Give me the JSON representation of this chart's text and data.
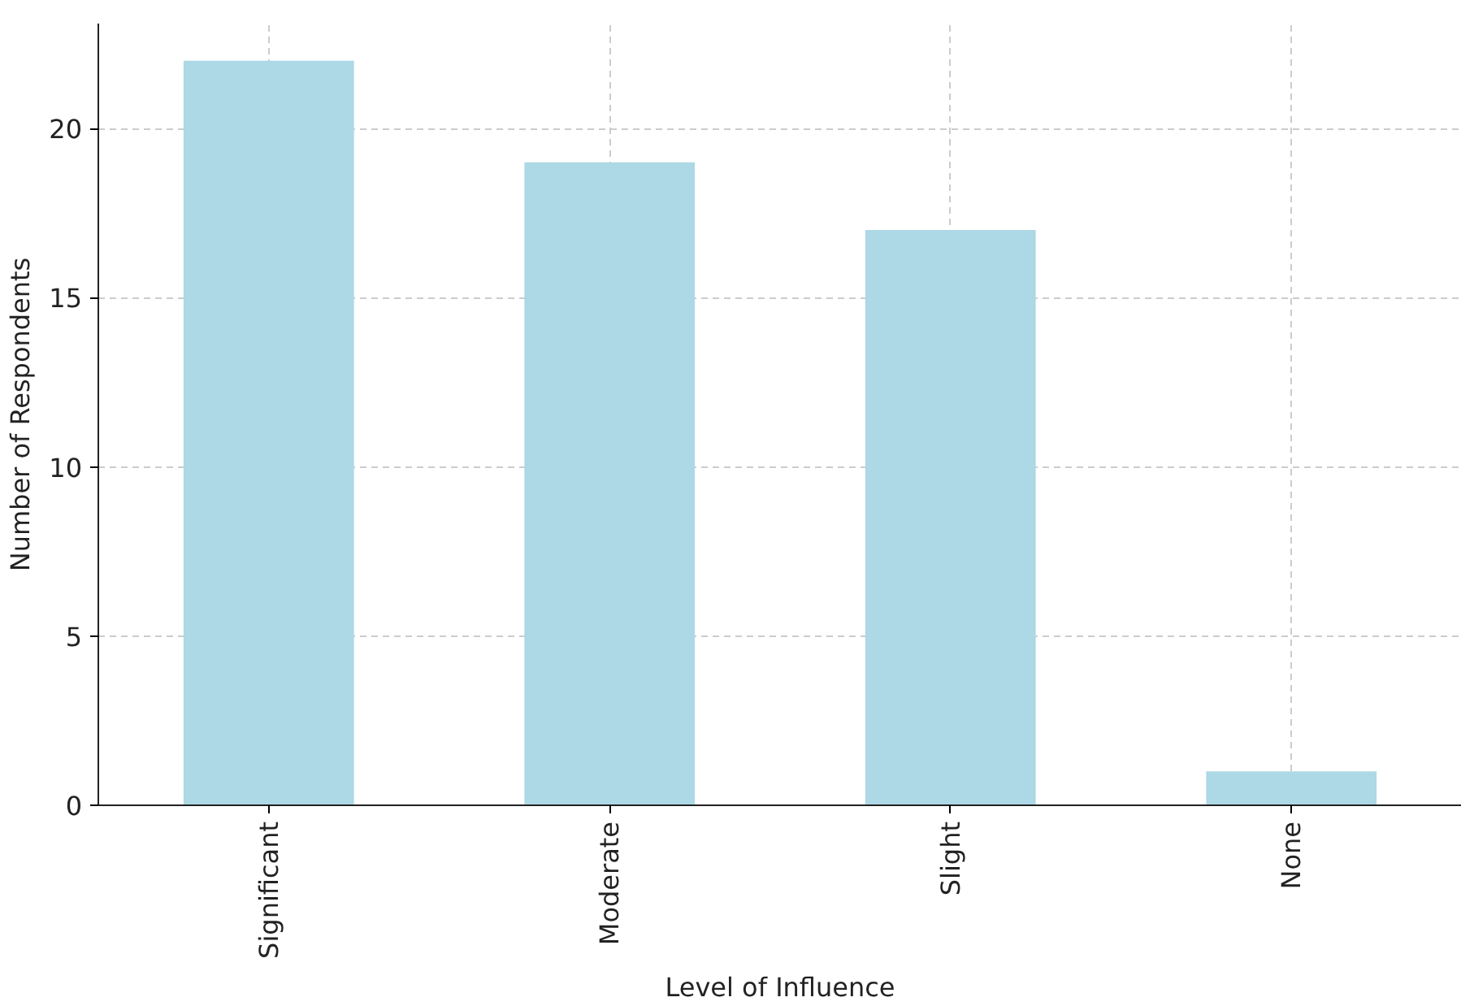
{
  "chart_data": {
    "type": "bar",
    "xlabel": "Level of Influence",
    "ylabel": "Number of Respondents",
    "categories": [
      "Significant",
      "Moderate",
      "Slight",
      "None"
    ],
    "values": [
      22,
      19,
      17,
      1
    ],
    "color": "#add8e6",
    "ylim": [
      0,
      23.1
    ],
    "yticks": [
      0,
      5,
      10,
      15,
      20
    ],
    "grid": true
  }
}
